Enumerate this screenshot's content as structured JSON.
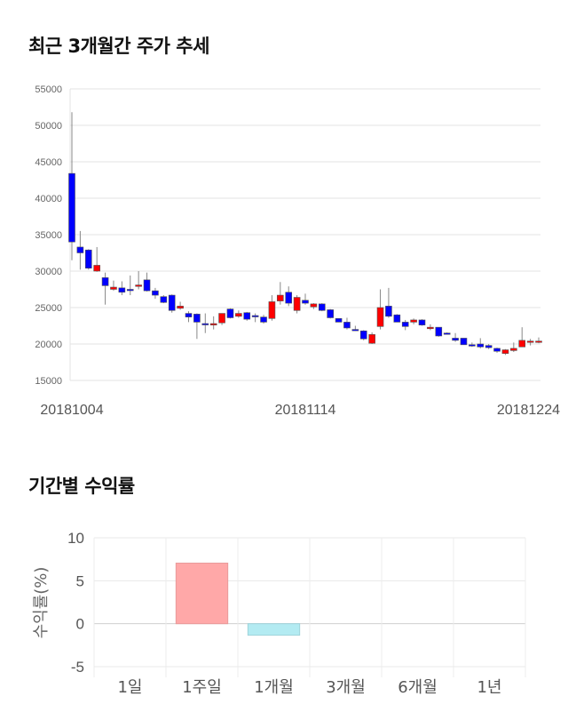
{
  "titles": {
    "price_trend": "최근 3개월간 주가 추세",
    "returns": "기간별 수익률"
  },
  "colors": {
    "up": "#ff0000",
    "down": "#0000ff",
    "positive_bar": "#ffa8a8",
    "negative_bar": "#b3ebf2"
  },
  "chart_data": [
    {
      "type": "candlestick",
      "title": "최근 3개월간 주가 추세",
      "ylim": [
        15000,
        55000
      ],
      "y_ticks": [
        "55000",
        "50000",
        "45000",
        "40000",
        "35000",
        "30000",
        "25000",
        "20000",
        "15000"
      ],
      "x_labels": [
        {
          "index": 0,
          "label": "20181004"
        },
        {
          "index": 28,
          "label": "20181114"
        },
        {
          "index": 56,
          "label": "20181224"
        }
      ],
      "ohlc": [
        [
          43400,
          51800,
          31500,
          34000
        ],
        [
          33300,
          35500,
          30200,
          32500
        ],
        [
          32900,
          33000,
          30200,
          30400
        ],
        [
          30000,
          33300,
          29900,
          30800
        ],
        [
          29100,
          29800,
          25400,
          28000
        ],
        [
          27500,
          28700,
          27300,
          27800
        ],
        [
          27700,
          28600,
          26700,
          27100
        ],
        [
          27500,
          29400,
          26700,
          27400
        ],
        [
          27900,
          30000,
          27500,
          28100
        ],
        [
          28800,
          29800,
          27200,
          27300
        ],
        [
          27300,
          27700,
          26200,
          26700
        ],
        [
          26500,
          26700,
          25600,
          25700
        ],
        [
          26700,
          26800,
          24300,
          24600
        ],
        [
          24900,
          25800,
          24700,
          25200
        ],
        [
          24200,
          24500,
          23000,
          23700
        ],
        [
          24100,
          24200,
          20700,
          23000
        ],
        [
          22800,
          24200,
          21500,
          22700
        ],
        [
          22600,
          23800,
          22000,
          22800
        ],
        [
          22900,
          24200,
          22600,
          24200
        ],
        [
          24800,
          24900,
          23500,
          23600
        ],
        [
          23800,
          24600,
          23600,
          24200
        ],
        [
          24300,
          24400,
          23200,
          23400
        ],
        [
          23900,
          24200,
          23000,
          23800
        ],
        [
          23700,
          24000,
          22800,
          23000
        ],
        [
          23500,
          26700,
          23200,
          25800
        ],
        [
          25900,
          28500,
          25400,
          26700
        ],
        [
          27100,
          27900,
          25200,
          25600
        ],
        [
          24600,
          26700,
          24200,
          26400
        ],
        [
          26000,
          26900,
          25400,
          25600
        ],
        [
          25100,
          25600,
          24800,
          25500
        ],
        [
          25500,
          25600,
          24500,
          24600
        ],
        [
          24700,
          24800,
          23500,
          23600
        ],
        [
          23500,
          23500,
          23000,
          23000
        ],
        [
          23000,
          23600,
          22000,
          22200
        ],
        [
          22000,
          22500,
          21800,
          21900
        ],
        [
          21800,
          21900,
          20500,
          20700
        ],
        [
          20100,
          21600,
          20000,
          21300
        ],
        [
          22400,
          27500,
          22000,
          25000
        ],
        [
          25200,
          27700,
          23600,
          23800
        ],
        [
          24000,
          24100,
          23000,
          23000
        ],
        [
          23000,
          23300,
          21900,
          22400
        ],
        [
          23000,
          23500,
          22700,
          23300
        ],
        [
          23300,
          23400,
          22500,
          22600
        ],
        [
          22100,
          22700,
          21900,
          22300
        ],
        [
          22300,
          22300,
          21000,
          21100
        ],
        [
          21500,
          21600,
          21300,
          21400
        ],
        [
          20800,
          21500,
          20300,
          20500
        ],
        [
          20800,
          20800,
          19900,
          19900
        ],
        [
          19900,
          20200,
          19600,
          19800
        ],
        [
          20000,
          20800,
          19400,
          19600
        ],
        [
          19800,
          20000,
          19300,
          19500
        ],
        [
          19400,
          19500,
          18800,
          19000
        ],
        [
          18700,
          19300,
          18500,
          19200
        ],
        [
          19100,
          20200,
          18900,
          19400
        ],
        [
          19600,
          22300,
          19600,
          20500
        ],
        [
          20300,
          20700,
          19800,
          20400
        ],
        [
          20300,
          20900,
          20100,
          20400
        ]
      ]
    },
    {
      "type": "bar",
      "title": "기간별 수익률",
      "ylabel": "수익률(%)",
      "ylim": [
        -5,
        10
      ],
      "y_ticks": [
        "10",
        "5",
        "0",
        "-5"
      ],
      "categories": [
        "1일",
        "1주일",
        "1개월",
        "3개월",
        "6개월",
        "1년"
      ],
      "values": [
        0,
        7.05,
        -1.34,
        0,
        0,
        0
      ]
    }
  ]
}
